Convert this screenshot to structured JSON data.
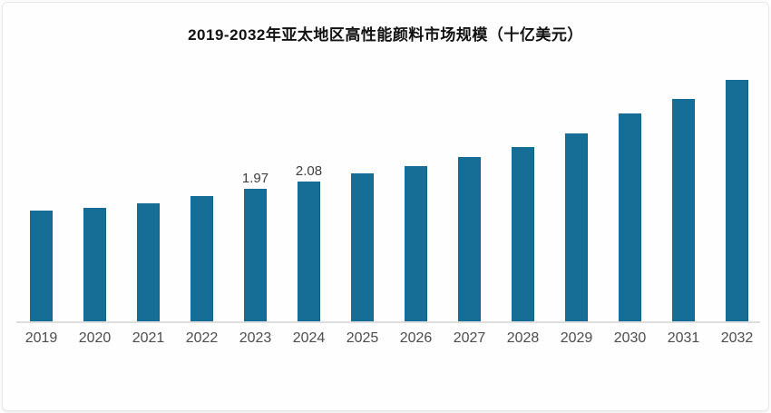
{
  "card": {
    "title": "2019-2032年亚太地区高性能颜料市场规模（十亿美元）"
  },
  "colors": {
    "bar": "#166e96",
    "axis": "#dedede",
    "tick_text": "#4d4d4d",
    "data_label_text": "#3f3f3f",
    "title_text": "#111111",
    "background": "#fefefe"
  },
  "chart_data": {
    "type": "bar",
    "title": "2019-2032年亚太地区高性能颜料市场规模（十亿美元）",
    "categories": [
      "2019",
      "2020",
      "2021",
      "2022",
      "2023",
      "2024",
      "2025",
      "2026",
      "2027",
      "2028",
      "2029",
      "2030",
      "2031",
      "2032"
    ],
    "values": [
      1.65,
      1.69,
      1.76,
      1.86,
      1.97,
      2.08,
      2.2,
      2.31,
      2.45,
      2.6,
      2.8,
      3.1,
      3.31,
      3.59
    ],
    "data_labels": [
      null,
      null,
      null,
      null,
      "1.97",
      "2.08",
      null,
      null,
      null,
      null,
      null,
      null,
      null,
      null
    ],
    "xlabel": "",
    "ylabel": "",
    "ylim": [
      0,
      4.0
    ],
    "grid": false,
    "legend": false,
    "legend_position": "none",
    "y_axis_visible": false,
    "x_axis_line": true
  }
}
